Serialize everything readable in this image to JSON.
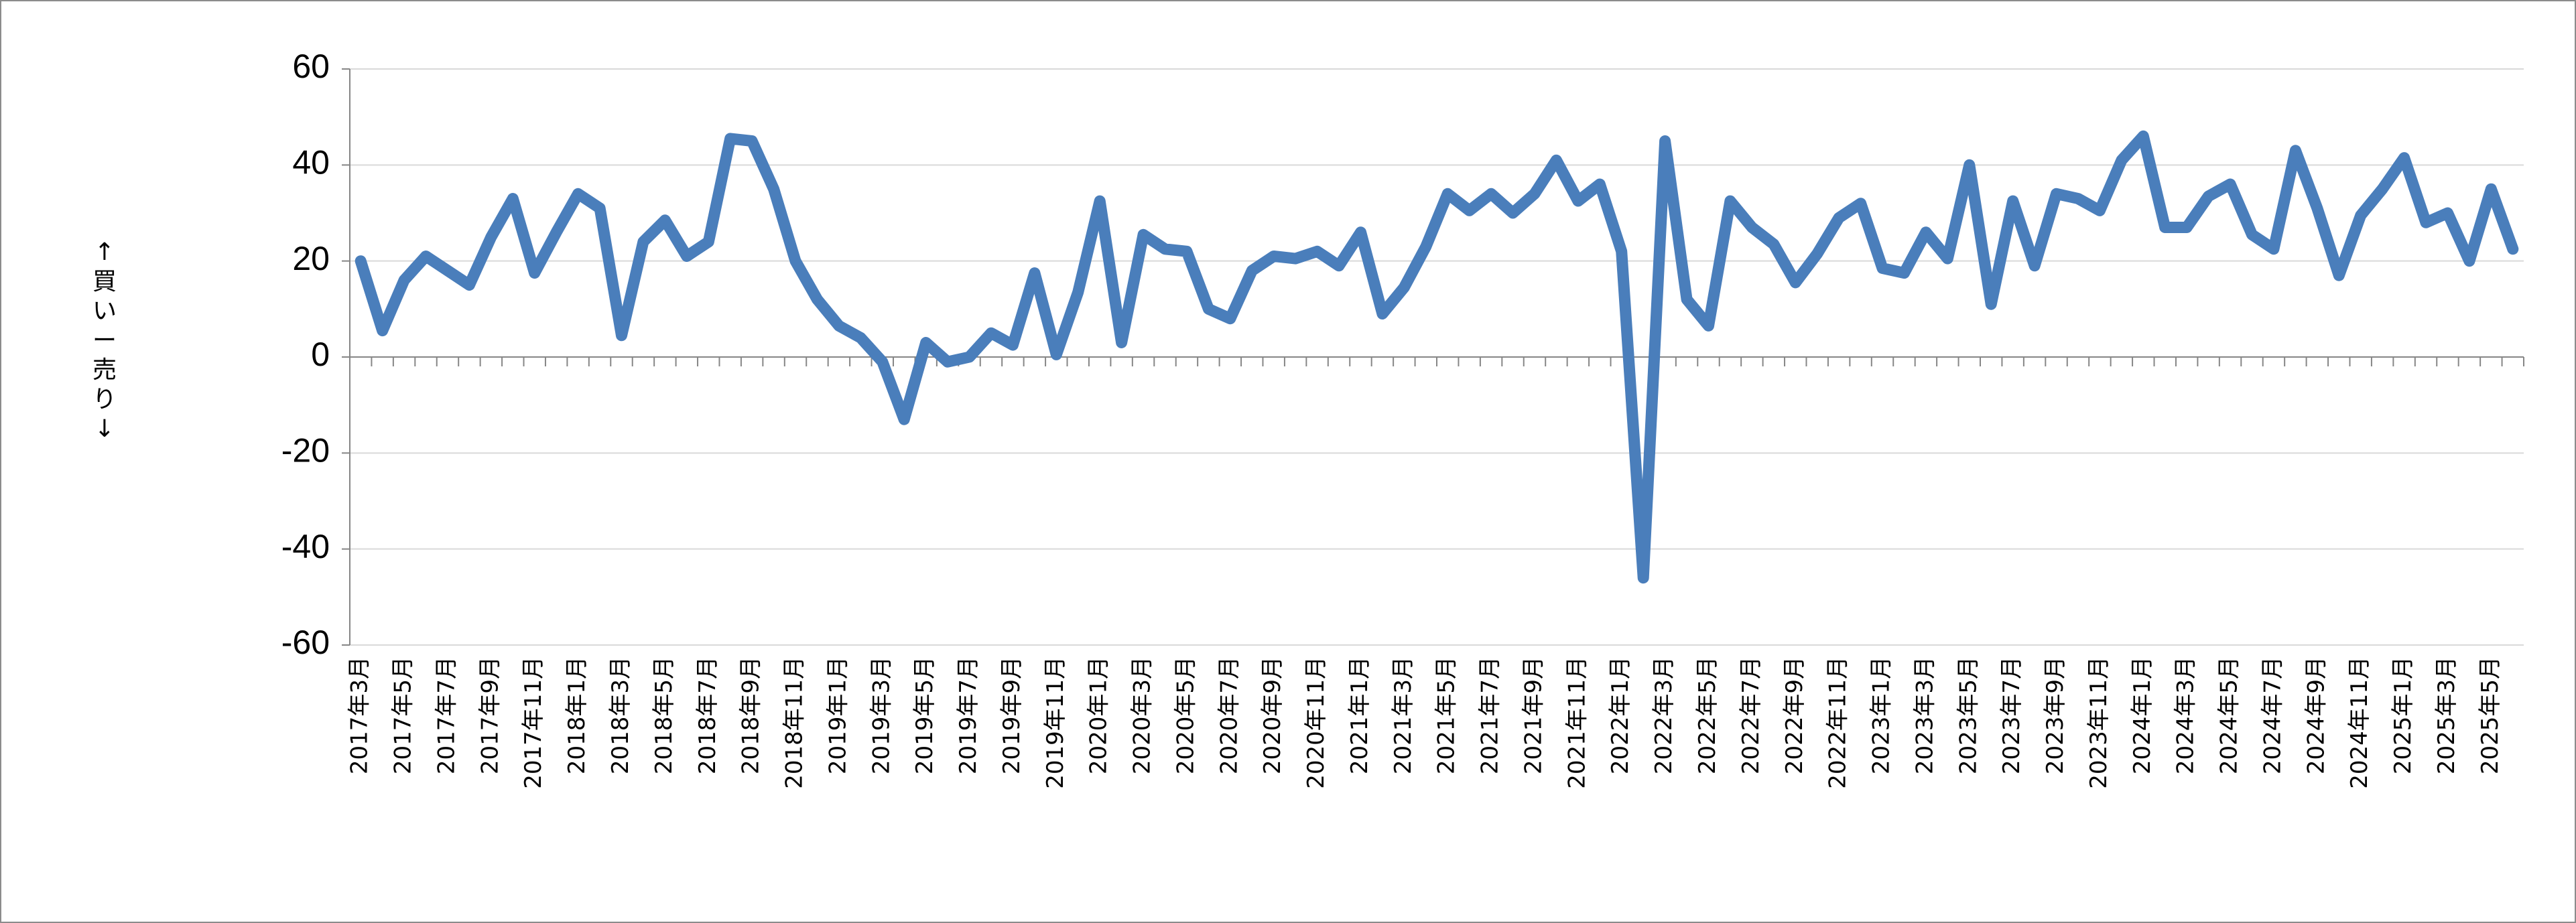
{
  "chart_data": {
    "type": "line",
    "y_label": "↑買い ー 売り↓",
    "categories": [
      "2017年3月",
      null,
      "2017年5月",
      null,
      "2017年7月",
      null,
      "2017年9月",
      null,
      "2017年11月",
      null,
      "2018年1月",
      null,
      "2018年3月",
      null,
      "2018年5月",
      null,
      "2018年7月",
      null,
      "2018年9月",
      null,
      "2018年11月",
      null,
      "2019年1月",
      null,
      "2019年3月",
      null,
      "2019年5月",
      null,
      "2019年7月",
      null,
      "2019年9月",
      null,
      "2019年11月",
      null,
      "2020年1月",
      null,
      "2020年3月",
      null,
      "2020年5月",
      null,
      "2020年7月",
      null,
      "2020年9月",
      null,
      "2020年11月",
      null,
      "2021年1月",
      null,
      "2021年3月",
      null,
      "2021年5月",
      null,
      "2021年7月",
      null,
      "2021年9月",
      null,
      "2021年11月",
      null,
      "2022年1月",
      null,
      "2022年3月",
      null,
      "2022年5月",
      null,
      "2022年7月",
      null,
      "2022年9月",
      null,
      "2022年11月",
      null,
      "2023年1月",
      null,
      "2023年3月",
      null,
      "2023年5月",
      null,
      "2023年7月",
      null,
      "2023年9月",
      null,
      "2023年11月",
      null,
      "2024年1月",
      null,
      "2024年3月",
      null,
      "2024年5月",
      null,
      "2024年7月",
      null,
      "2024年9月",
      null,
      "2024年11月",
      null,
      "2025年1月",
      null,
      "2025年3月",
      null,
      "2025年5月",
      null
    ],
    "values": [
      20,
      5.5,
      16,
      21,
      18,
      15,
      25,
      33,
      17.5,
      26,
      34,
      31,
      4.5,
      24,
      28.5,
      21,
      24,
      45.5,
      45,
      35,
      20,
      12,
      6.5,
      4,
      -1,
      -13,
      3,
      -1,
      0,
      5,
      2.5,
      17.5,
      0.5,
      13.5,
      32.5,
      3,
      25.5,
      22.5,
      22,
      10,
      8,
      18,
      21,
      20.5,
      22,
      19,
      26,
      9,
      14.5,
      23,
      34,
      30.5,
      34,
      30,
      34,
      41,
      32.5,
      36,
      22,
      -46,
      45,
      12,
      6.5,
      32.5,
      27,
      23.5,
      15.5,
      21.5,
      29,
      32,
      18.5,
      17.5,
      26,
      20.5,
      40,
      11,
      32.5,
      19,
      34,
      33,
      30.5,
      41,
      46,
      27,
      27,
      33.5,
      36,
      25.5,
      22.5,
      43,
      31,
      17,
      29.5,
      35,
      41.5,
      28,
      30,
      20,
      35,
      22.5
    ],
    "color": "#4a7ebb",
    "ylim": [
      -60,
      60
    ],
    "yticks": [
      60,
      40,
      20,
      0,
      -20,
      -40,
      -60
    ],
    "grid": true
  }
}
